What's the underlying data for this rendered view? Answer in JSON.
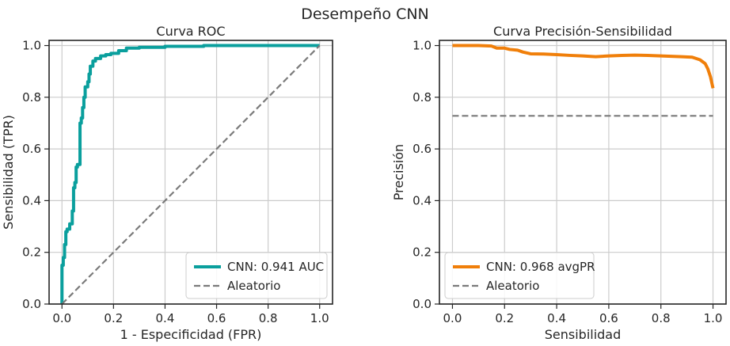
{
  "figure_title": "Desempeño CNN",
  "colors": {
    "roc": "#0a9f9d",
    "pr": "#f07f0a",
    "baseline": "#7a7a7a"
  },
  "chart_data": [
    {
      "type": "line",
      "title": "Curva ROC",
      "xlabel": "1 - Especificidad (FPR)",
      "ylabel": "Sensibilidad (TPR)",
      "xlim": [
        -0.05,
        1.05
      ],
      "ylim": [
        0,
        1.02
      ],
      "xticks": [
        0.0,
        0.2,
        0.4,
        0.6,
        0.8,
        1.0
      ],
      "xtick_labels": [
        "0.0",
        "0.2",
        "0.4",
        "0.6",
        "0.8",
        "1.0"
      ],
      "yticks": [
        0.0,
        0.2,
        0.4,
        0.6,
        0.8,
        1.0
      ],
      "ytick_labels": [
        "0.0",
        "0.2",
        "0.4",
        "0.6",
        "0.8",
        "1.0"
      ],
      "grid": true,
      "legend": "lower-right",
      "series": [
        {
          "name": "CNN: 0.941 AUC",
          "color": "#0a9f9d",
          "style": "solid",
          "x": [
            0.0,
            0.0,
            0.005,
            0.005,
            0.01,
            0.01,
            0.015,
            0.015,
            0.02,
            0.02,
            0.03,
            0.03,
            0.04,
            0.04,
            0.045,
            0.045,
            0.05,
            0.05,
            0.055,
            0.055,
            0.06,
            0.06,
            0.07,
            0.07,
            0.075,
            0.075,
            0.08,
            0.08,
            0.085,
            0.085,
            0.09,
            0.09,
            0.1,
            0.1,
            0.105,
            0.105,
            0.11,
            0.11,
            0.12,
            0.12,
            0.13,
            0.13,
            0.15,
            0.15,
            0.17,
            0.17,
            0.19,
            0.19,
            0.22,
            0.22,
            0.25,
            0.25,
            0.3,
            0.3,
            0.4,
            0.4,
            0.55,
            0.55,
            1.0
          ],
          "y": [
            0.0,
            0.15,
            0.15,
            0.18,
            0.18,
            0.23,
            0.23,
            0.28,
            0.28,
            0.29,
            0.29,
            0.31,
            0.31,
            0.36,
            0.36,
            0.45,
            0.45,
            0.47,
            0.47,
            0.53,
            0.53,
            0.54,
            0.54,
            0.7,
            0.7,
            0.72,
            0.72,
            0.76,
            0.76,
            0.8,
            0.8,
            0.84,
            0.84,
            0.86,
            0.86,
            0.89,
            0.89,
            0.92,
            0.92,
            0.94,
            0.94,
            0.95,
            0.95,
            0.96,
            0.96,
            0.965,
            0.965,
            0.97,
            0.97,
            0.98,
            0.98,
            0.99,
            0.99,
            0.993,
            0.993,
            0.997,
            0.997,
            1.0,
            1.0
          ]
        },
        {
          "name": "Aleatorio",
          "color": "#7a7a7a",
          "style": "dashed",
          "x": [
            0.0,
            1.0
          ],
          "y": [
            0.0,
            1.0
          ]
        }
      ]
    },
    {
      "type": "line",
      "title": "Curva Precisión-Sensibilidad",
      "xlabel": "Sensibilidad",
      "ylabel": "Precisión",
      "xlim": [
        -0.05,
        1.05
      ],
      "ylim": [
        0,
        1.02
      ],
      "xticks": [
        0.0,
        0.2,
        0.4,
        0.6,
        0.8,
        1.0
      ],
      "xtick_labels": [
        "0.0",
        "0.2",
        "0.4",
        "0.6",
        "0.8",
        "1.0"
      ],
      "yticks": [
        0.0,
        0.2,
        0.4,
        0.6,
        0.8,
        1.0
      ],
      "ytick_labels": [
        "0.0",
        "0.2",
        "0.4",
        "0.6",
        "0.8",
        "1.0"
      ],
      "grid": true,
      "legend": "lower-left",
      "series": [
        {
          "name": "CNN: 0.968 avgPR",
          "color": "#f07f0a",
          "style": "solid",
          "x": [
            0.0,
            0.05,
            0.1,
            0.15,
            0.17,
            0.2,
            0.22,
            0.25,
            0.27,
            0.3,
            0.35,
            0.4,
            0.45,
            0.5,
            0.55,
            0.6,
            0.65,
            0.7,
            0.75,
            0.8,
            0.85,
            0.88,
            0.92,
            0.95,
            0.97,
            0.98,
            0.99,
            1.0
          ],
          "y": [
            1.0,
            1.0,
            1.0,
            0.998,
            0.99,
            0.99,
            0.985,
            0.982,
            0.975,
            0.968,
            0.967,
            0.965,
            0.962,
            0.96,
            0.957,
            0.96,
            0.962,
            0.963,
            0.962,
            0.96,
            0.958,
            0.957,
            0.955,
            0.945,
            0.93,
            0.91,
            0.88,
            0.835
          ]
        },
        {
          "name": "Aleatorio",
          "color": "#7a7a7a",
          "style": "dashed",
          "x": [
            0.0,
            1.0
          ],
          "y": [
            0.728,
            0.728
          ]
        }
      ]
    }
  ]
}
